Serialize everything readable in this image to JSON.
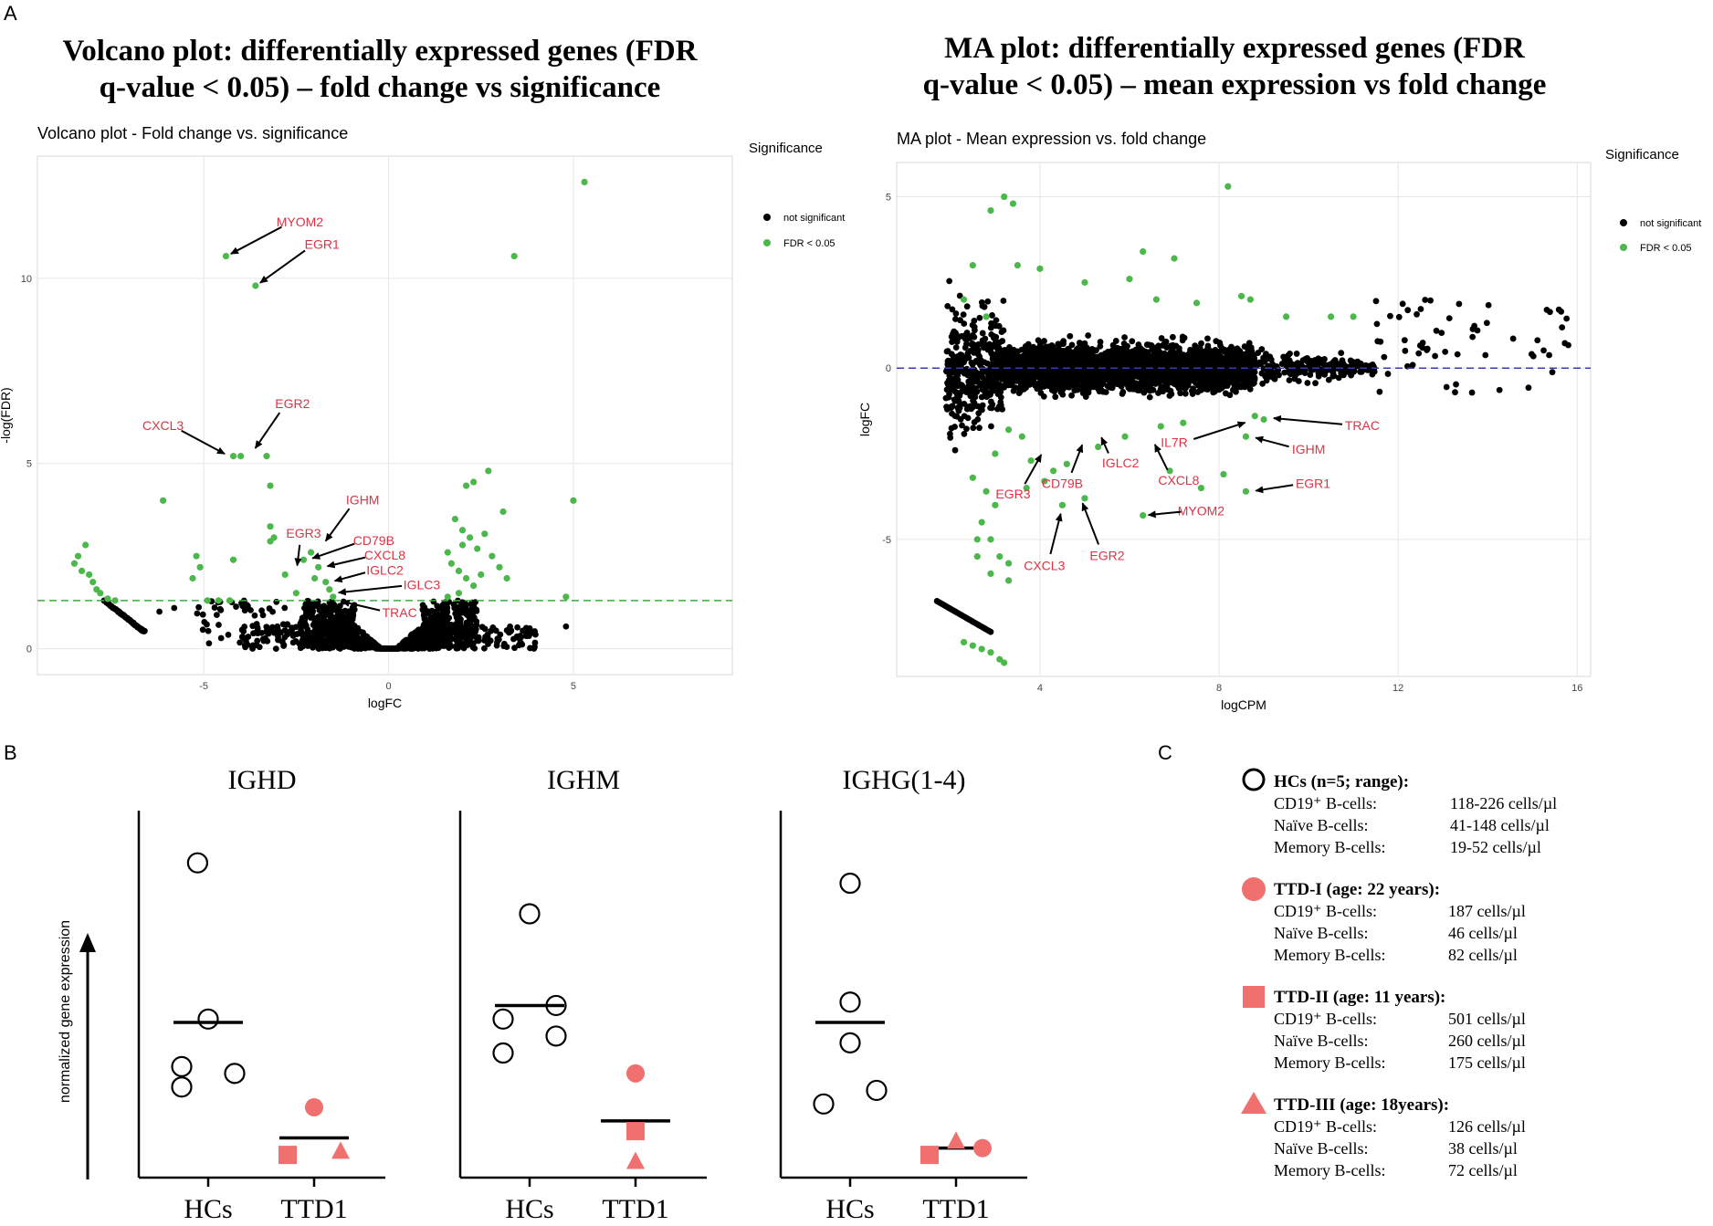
{
  "panels": {
    "a": "A",
    "b": "B",
    "c": "C"
  },
  "colors": {
    "black": "#000000",
    "green": "#4cb84c",
    "red": "#dd3344",
    "salmon": "#f07070",
    "grid": "#e6e6e6",
    "dashGreen": "#3bab3b",
    "dashBlue": "#3b3bb0"
  },
  "chart_data": [
    {
      "id": "volcano",
      "type": "scatter",
      "heading": [
        "Volcano plot: differentially expressed genes (FDR",
        "q-value < 0.05) – fold change vs significance"
      ],
      "title": "Volcano plot - Fold change vs. significance",
      "xlabel": "logFC",
      "ylabel": "-log(FDR)",
      "xlim": [
        -9.5,
        9.3
      ],
      "ylim": [
        -0.7,
        13.3
      ],
      "xticks": [
        -5,
        0,
        5
      ],
      "yticks": [
        0,
        5,
        10
      ],
      "threshold": {
        "axis": "y",
        "value": 1.3
      },
      "legend": {
        "title": "Significance",
        "items": [
          {
            "label": "not significant",
            "color": "#000000"
          },
          {
            "label": "FDR < 0.05",
            "color": "#4cb84c"
          }
        ]
      },
      "green_points": [
        [
          5.3,
          12.6
        ],
        [
          -4.4,
          10.6
        ],
        [
          3.4,
          10.6
        ],
        [
          -3.6,
          9.8
        ],
        [
          -4.2,
          5.2
        ],
        [
          -4.0,
          5.2
        ],
        [
          -3.3,
          5.2
        ],
        [
          -3.2,
          4.4
        ],
        [
          -6.1,
          4.0
        ],
        [
          5.0,
          4.0
        ],
        [
          -3.2,
          3.3
        ],
        [
          -3.1,
          3.0
        ],
        [
          -3.2,
          2.9
        ],
        [
          -2.1,
          2.6
        ],
        [
          -2.3,
          2.4
        ],
        [
          -1.9,
          2.2
        ],
        [
          -2.5,
          1.5
        ],
        [
          -2.0,
          1.9
        ],
        [
          -1.7,
          1.8
        ],
        [
          -1.6,
          1.6
        ],
        [
          -1.5,
          1.4
        ],
        [
          -2.8,
          2.0
        ],
        [
          -4.2,
          2.4
        ],
        [
          -5.2,
          2.5
        ],
        [
          -5.1,
          2.2
        ],
        [
          -5.3,
          1.9
        ],
        [
          -4.6,
          1.3
        ],
        [
          -4.9,
          1.3
        ],
        [
          -4.3,
          1.3
        ],
        [
          2.1,
          4.4
        ],
        [
          2.3,
          4.5
        ],
        [
          2.7,
          4.8
        ],
        [
          1.8,
          3.5
        ],
        [
          2.0,
          3.2
        ],
        [
          2.2,
          3.0
        ],
        [
          2.6,
          3.1
        ],
        [
          3.1,
          3.7
        ],
        [
          2.4,
          2.7
        ],
        [
          2.8,
          2.5
        ],
        [
          1.7,
          2.3
        ],
        [
          1.9,
          2.1
        ],
        [
          2.1,
          1.9
        ],
        [
          2.5,
          2.0
        ],
        [
          3.0,
          2.2
        ],
        [
          3.2,
          1.9
        ],
        [
          2.3,
          1.7
        ],
        [
          1.9,
          1.5
        ],
        [
          1.6,
          1.4
        ],
        [
          4.8,
          1.4
        ],
        [
          1.6,
          2.6
        ],
        [
          2.0,
          2.8
        ],
        [
          -8.2,
          2.8
        ],
        [
          -8.4,
          2.5
        ],
        [
          -8.5,
          2.3
        ],
        [
          -8.3,
          2.1
        ],
        [
          -8.1,
          2.0
        ],
        [
          -8.0,
          1.8
        ],
        [
          -7.9,
          1.6
        ],
        [
          -7.8,
          1.5
        ],
        [
          -7.6,
          1.35
        ],
        [
          -7.4,
          1.3
        ]
      ],
      "left_arc": {
        "x_range": [
          -7.7,
          -6.6
        ],
        "y_range": [
          1.3,
          0.45
        ]
      },
      "labels": [
        {
          "text": "MYOM2",
          "pos": [
            -2.4,
            11.4
          ],
          "point": [
            -4.4,
            10.6
          ]
        },
        {
          "text": "EGR1",
          "pos": [
            -1.8,
            10.8
          ],
          "point": [
            -3.6,
            9.8
          ]
        },
        {
          "text": "EGR2",
          "pos": [
            -2.6,
            6.5
          ],
          "point": [
            -3.7,
            5.3
          ]
        },
        {
          "text": "CXCL3",
          "pos": [
            -6.1,
            5.9
          ],
          "point": [
            -4.3,
            5.2
          ]
        },
        {
          "text": "IGHM",
          "pos": [
            -0.7,
            3.9
          ],
          "point": [
            -1.8,
            2.8
          ]
        },
        {
          "text": "EGR3",
          "pos": [
            -2.3,
            3.0
          ],
          "point": [
            -2.5,
            2.1
          ]
        },
        {
          "text": "CD79B",
          "pos": [
            -0.4,
            2.8
          ],
          "point": [
            -2.2,
            2.4
          ]
        },
        {
          "text": "CXCL8",
          "pos": [
            -0.1,
            2.4
          ],
          "point": [
            -1.8,
            2.2
          ]
        },
        {
          "text": "IGLC2",
          "pos": [
            -0.1,
            2.0
          ],
          "point": [
            -1.6,
            1.8
          ]
        },
        {
          "text": "IGLC3",
          "pos": [
            0.9,
            1.6
          ],
          "point": [
            -1.5,
            1.5
          ]
        },
        {
          "text": "TRAC",
          "pos": [
            0.3,
            0.85
          ],
          "point": [
            -1.4,
            1.3
          ]
        }
      ]
    },
    {
      "id": "ma",
      "type": "scatter",
      "heading": [
        "MA plot: differentially expressed genes (FDR",
        "q-value < 0.05) – mean expression vs fold change"
      ],
      "title": "MA plot - Mean expression vs. fold change",
      "xlabel": "logCPM",
      "ylabel": "logFC",
      "xlim": [
        0.8,
        16.3
      ],
      "ylim": [
        -9.0,
        6.0
      ],
      "xticks": [
        4,
        8,
        12,
        16
      ],
      "yticks": [
        -5,
        0,
        5
      ],
      "threshold": {
        "axis": "y",
        "value": 0
      },
      "legend": {
        "title": "Significance",
        "items": [
          {
            "label": "not significant",
            "color": "#000000"
          },
          {
            "label": "FDR < 0.05",
            "color": "#4cb84c"
          }
        ]
      },
      "green_points": [
        [
          8.2,
          5.3
        ],
        [
          3.2,
          5.0
        ],
        [
          3.4,
          4.8
        ],
        [
          2.9,
          4.6
        ],
        [
          3.5,
          3.0
        ],
        [
          4.0,
          2.9
        ],
        [
          6.3,
          3.4
        ],
        [
          7.0,
          3.2
        ],
        [
          5.0,
          2.5
        ],
        [
          6.0,
          2.6
        ],
        [
          6.6,
          2.0
        ],
        [
          7.5,
          1.9
        ],
        [
          8.5,
          2.1
        ],
        [
          8.7,
          2.0
        ],
        [
          9.5,
          1.5
        ],
        [
          10.5,
          1.5
        ],
        [
          11.0,
          1.5
        ],
        [
          2.3,
          2.0
        ],
        [
          2.8,
          1.5
        ],
        [
          2.5,
          3.0
        ],
        [
          8.8,
          -1.4
        ],
        [
          9.0,
          -1.5
        ],
        [
          8.6,
          -2.0
        ],
        [
          8.6,
          -3.6
        ],
        [
          6.3,
          -4.3
        ],
        [
          4.5,
          -4.0
        ],
        [
          5.0,
          -3.8
        ],
        [
          3.7,
          -3.5
        ],
        [
          4.1,
          -3.3
        ],
        [
          4.3,
          -3.0
        ],
        [
          4.6,
          -2.8
        ],
        [
          5.3,
          -2.3
        ],
        [
          5.9,
          -2.0
        ],
        [
          6.7,
          -1.7
        ],
        [
          7.2,
          -1.6
        ],
        [
          3.3,
          -1.8
        ],
        [
          3.6,
          -2.0
        ],
        [
          3.0,
          -2.5
        ],
        [
          3.8,
          -2.7
        ],
        [
          2.5,
          -3.2
        ],
        [
          2.8,
          -3.6
        ],
        [
          3.0,
          -4.0
        ],
        [
          2.7,
          -4.5
        ],
        [
          2.9,
          -5.0
        ],
        [
          3.1,
          -5.5
        ],
        [
          3.3,
          -5.7
        ],
        [
          2.6,
          -5.5
        ],
        [
          2.9,
          -6.0
        ],
        [
          3.3,
          -6.2
        ],
        [
          2.6,
          -5.0
        ],
        [
          7.6,
          -3.5
        ],
        [
          6.9,
          -3.0
        ],
        [
          8.1,
          -3.1
        ],
        [
          2.3,
          -8.0
        ],
        [
          2.5,
          -8.1
        ],
        [
          2.7,
          -8.2
        ],
        [
          2.9,
          -8.3
        ],
        [
          3.1,
          -8.5
        ],
        [
          3.2,
          -8.6
        ]
      ],
      "tail_line": {
        "x_range": [
          1.7,
          2.9
        ],
        "y_range": [
          -6.8,
          -7.7
        ]
      },
      "labels": [
        {
          "text": "TRAC",
          "pos": [
            11.2,
            -1.8
          ],
          "point": [
            9.1,
            -1.45
          ]
        },
        {
          "text": "IL7R",
          "pos": [
            7.0,
            -2.3
          ],
          "point": [
            8.7,
            -1.55
          ]
        },
        {
          "text": "IGHM",
          "pos": [
            10.0,
            -2.5
          ],
          "point": [
            8.7,
            -2.0
          ]
        },
        {
          "text": "IGLC2",
          "pos": [
            5.8,
            -2.9
          ],
          "point": [
            5.3,
            -1.9
          ]
        },
        {
          "text": "CXCL8",
          "pos": [
            7.1,
            -3.4
          ],
          "point": [
            6.5,
            -2.1
          ]
        },
        {
          "text": "CD79B",
          "pos": [
            4.5,
            -3.5
          ],
          "point": [
            5.0,
            -2.1
          ]
        },
        {
          "text": "EGR1",
          "pos": [
            10.1,
            -3.5
          ],
          "point": [
            8.7,
            -3.6
          ]
        },
        {
          "text": "EGR3",
          "pos": [
            3.4,
            -3.8
          ],
          "point": [
            4.1,
            -2.4
          ]
        },
        {
          "text": "MYOM2",
          "pos": [
            7.6,
            -4.3
          ],
          "point": [
            6.3,
            -4.3
          ]
        },
        {
          "text": "EGR2",
          "pos": [
            5.5,
            -5.6
          ],
          "point": [
            4.9,
            -3.8
          ]
        },
        {
          "text": "CXCL3",
          "pos": [
            4.1,
            -5.9
          ],
          "point": [
            4.5,
            -4.1
          ]
        }
      ]
    },
    {
      "id": "ighd",
      "type": "scatter",
      "title": "IGHD",
      "categories": [
        "HCs",
        "TTD1"
      ],
      "ylabel": "normalized gene expression",
      "ylim": [
        0,
        100
      ],
      "hcs": [
        {
          "x": 0.9,
          "y": 90
        },
        {
          "x": 1.0,
          "y": 44
        },
        {
          "x": 0.75,
          "y": 30
        },
        {
          "x": 0.75,
          "y": 24
        },
        {
          "x": 1.25,
          "y": 28
        }
      ],
      "hcs_mean": 43,
      "ttd": [
        {
          "shape": "square",
          "x": 1.75,
          "y": 4
        },
        {
          "shape": "circle",
          "x": 2.0,
          "y": 18
        },
        {
          "shape": "triangle",
          "x": 2.25,
          "y": 5
        }
      ],
      "ttd_mean": 9
    },
    {
      "id": "ighm",
      "type": "scatter",
      "title": "IGHM",
      "categories": [
        "HCs",
        "TTD1"
      ],
      "ylim": [
        0,
        100
      ],
      "hcs": [
        {
          "x": 1.0,
          "y": 75
        },
        {
          "x": 0.75,
          "y": 44
        },
        {
          "x": 1.25,
          "y": 48
        },
        {
          "x": 1.25,
          "y": 39
        },
        {
          "x": 0.75,
          "y": 34
        }
      ],
      "hcs_mean": 48,
      "ttd": [
        {
          "shape": "circle",
          "x": 2.0,
          "y": 28
        },
        {
          "shape": "square",
          "x": 2.0,
          "y": 11
        },
        {
          "shape": "triangle",
          "x": 2.0,
          "y": 2
        }
      ],
      "ttd_mean": 14
    },
    {
      "id": "ighg",
      "type": "scatter",
      "title": "IGHG(1-4)",
      "categories": [
        "HCs",
        "TTD1"
      ],
      "ylim": [
        0,
        100
      ],
      "hcs": [
        {
          "x": 1.0,
          "y": 84
        },
        {
          "x": 1.0,
          "y": 49
        },
        {
          "x": 1.0,
          "y": 37
        },
        {
          "x": 1.25,
          "y": 23
        },
        {
          "x": 0.75,
          "y": 19
        }
      ],
      "hcs_mean": 43,
      "ttd": [
        {
          "shape": "square",
          "x": 1.75,
          "y": 4
        },
        {
          "shape": "triangle",
          "x": 2.0,
          "y": 8
        },
        {
          "shape": "circle",
          "x": 2.25,
          "y": 6
        }
      ],
      "ttd_mean": 6
    }
  ],
  "legend_c": [
    {
      "shape": "circle-open",
      "title": "HCs (n=5; range):",
      "rows": [
        [
          "CD19⁺ B-cells:",
          "118-226 cells/µl"
        ],
        [
          "Naïve B-cells:",
          "41-148 cells/µl"
        ],
        [
          "Memory B-cells:",
          "19-52 cells/µl"
        ]
      ]
    },
    {
      "shape": "circle",
      "title": "TTD-I (age: 22 years):",
      "rows": [
        [
          "CD19⁺ B-cells:",
          "187 cells/µl"
        ],
        [
          "Naïve B-cells:",
          "46 cells/µl"
        ],
        [
          "Memory B-cells:",
          "82 cells/µl"
        ]
      ]
    },
    {
      "shape": "square",
      "title": "TTD-II (age: 11 years):",
      "rows": [
        [
          "CD19⁺ B-cells:",
          "501 cells/µl"
        ],
        [
          "Naïve B-cells:",
          "260 cells/µl"
        ],
        [
          "Memory B-cells:",
          "175 cells/µl"
        ]
      ]
    },
    {
      "shape": "triangle",
      "title": "TTD-III (age: 18years):",
      "rows": [
        [
          "CD19⁺ B-cells:",
          "126 cells/µl"
        ],
        [
          "Naïve B-cells:",
          "38 cells/µl"
        ],
        [
          "Memory B-cells:",
          "72 cells/µl"
        ]
      ]
    }
  ]
}
